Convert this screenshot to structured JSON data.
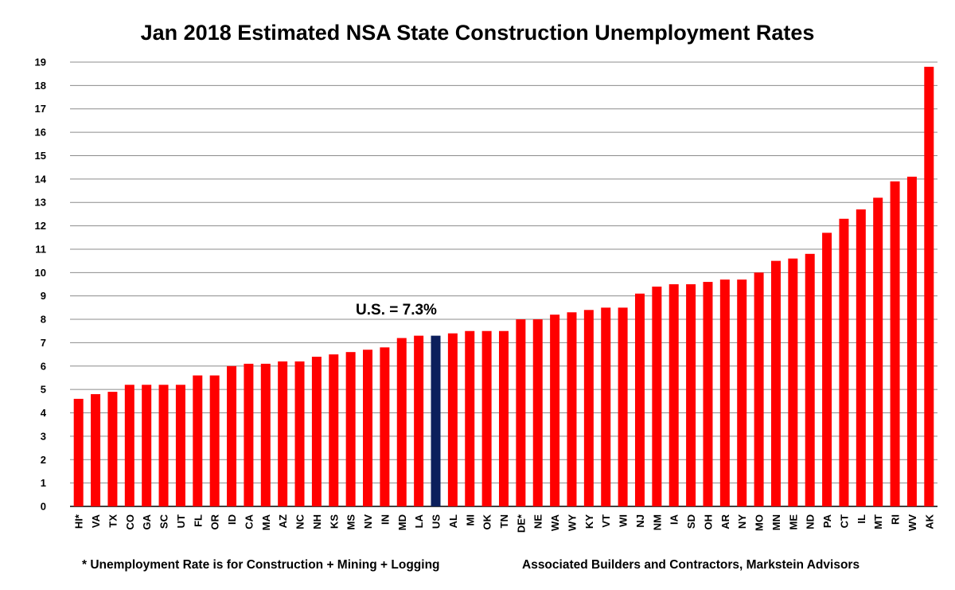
{
  "chart_data": {
    "type": "bar",
    "title": "Jan 2018 Estimated NSA State Construction Unemployment Rates",
    "xlabel": "",
    "ylabel": "",
    "ylim": [
      0,
      19
    ],
    "yticks": [
      0,
      1,
      2,
      3,
      4,
      5,
      6,
      7,
      8,
      9,
      10,
      11,
      12,
      13,
      14,
      15,
      16,
      17,
      18,
      19
    ],
    "grid": true,
    "categories": [
      "HI*",
      "VA",
      "TX",
      "CO",
      "GA",
      "SC",
      "UT",
      "FL",
      "OR",
      "ID",
      "CA",
      "MA",
      "AZ",
      "NC",
      "NH",
      "KS",
      "MS",
      "NV",
      "IN",
      "MD",
      "LA",
      "US",
      "AL",
      "MI",
      "OK",
      "TN",
      "DE*",
      "NE",
      "WA",
      "WY",
      "KY",
      "VT",
      "WI",
      "NJ",
      "NM",
      "IA",
      "SD",
      "OH",
      "AR",
      "NY",
      "MO",
      "MN",
      "ME",
      "ND",
      "PA",
      "CT",
      "IL",
      "MT",
      "RI",
      "WV",
      "AK"
    ],
    "values": [
      4.6,
      4.8,
      4.9,
      5.2,
      5.2,
      5.2,
      5.2,
      5.6,
      5.6,
      6.0,
      6.1,
      6.1,
      6.2,
      6.2,
      6.4,
      6.5,
      6.6,
      6.7,
      6.8,
      7.2,
      7.3,
      7.3,
      7.4,
      7.5,
      7.5,
      7.5,
      8.0,
      8.0,
      8.2,
      8.3,
      8.4,
      8.5,
      8.5,
      9.1,
      9.4,
      9.5,
      9.5,
      9.6,
      9.7,
      9.7,
      10.0,
      10.5,
      10.6,
      10.8,
      11.7,
      12.3,
      12.7,
      13.2,
      13.9,
      14.1,
      18.8
    ],
    "highlight_category": "US",
    "colors": {
      "bar": "#ff0000",
      "highlight": "#0b1f5c",
      "grid": "#8c8c8c"
    },
    "annotation": "U.S. = 7.3%",
    "footnote_left": "* Unemployment Rate is for Construction + Mining + Logging",
    "footnote_right": "Associated Builders and Contractors, Markstein Advisors"
  }
}
